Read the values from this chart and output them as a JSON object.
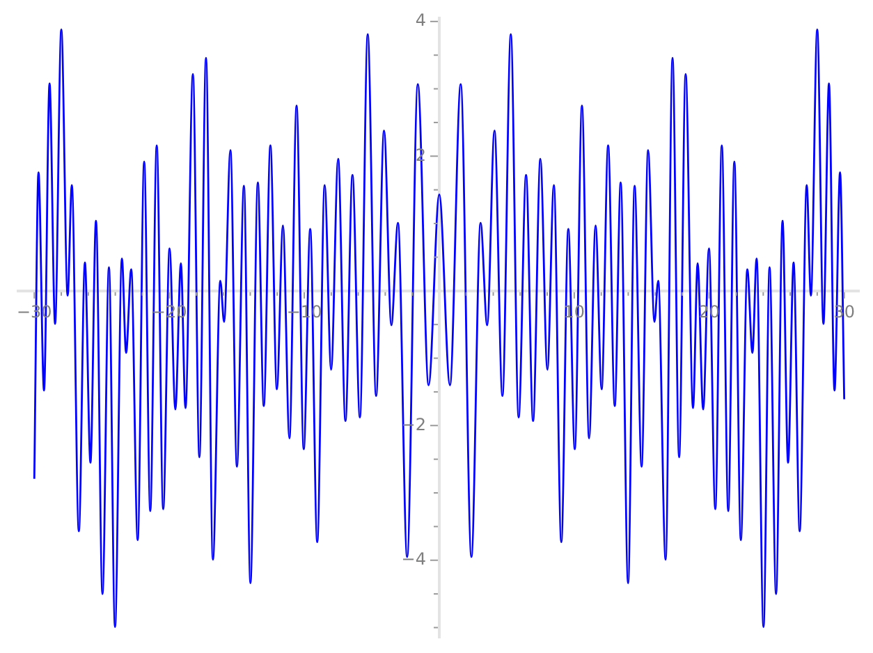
{
  "chart_data": {
    "type": "line",
    "color": "#0000ff",
    "marker": "none",
    "x": [
      -30,
      -29.69,
      -29.28,
      -28.87,
      -28.46,
      -28,
      -27.53,
      -27.22,
      -26.7,
      -26.25,
      -25.84,
      -25.43,
      -24.95,
      -24.47,
      -24.02,
      -23.51,
      -23.2,
      -22.82,
      -22.34,
      -21.86,
      -21.41,
      -20.93,
      -20.45,
      -19.98,
      -19.55,
      -19.14,
      -18.8,
      -18.25,
      -17.77,
      -17.28,
      -16.77,
      -16.22,
      -15.94,
      -15.47,
      -14.99,
      -14.47,
      -13.99,
      -13.44,
      -13,
      -12.51,
      -12.03,
      -11.58,
      -11.1,
      -10.57,
      -10.04,
      -9.56,
      -9.04,
      -8.49,
      -8.01,
      -7.49,
      -6.95,
      -6.43,
      -5.88,
      -5.3,
      -4.68,
      -4.09,
      -3.55,
      -3.06,
      -2.38,
      -1.59,
      -0.79,
      0,
      0.79,
      1.59,
      2.38,
      3.06,
      3.55,
      4.09,
      4.68,
      5.3,
      5.88,
      6.43,
      6.95,
      7.49,
      8.01,
      8.49,
      9.04,
      9.56,
      10.04,
      10.57,
      11.1,
      11.58,
      12.03,
      12.51,
      13,
      13.44,
      13.99,
      14.47,
      14.99,
      15.47,
      15.94,
      16.22,
      16.77,
      17.28,
      17.77,
      18.25,
      18.8,
      19.14,
      19.55,
      19.98,
      20.45,
      20.93,
      21.41,
      21.86,
      22.34,
      22.82,
      23.2,
      23.51,
      24.02,
      24.47,
      24.95,
      25.43,
      25.84,
      26.25,
      26.7,
      27.22,
      27.53,
      28,
      28.46,
      28.87,
      29.28,
      29.69,
      30
    ],
    "values": [
      -2.79,
      1.76,
      -1.48,
      3.08,
      -0.49,
      3.88,
      -0.07,
      1.57,
      -3.57,
      0.42,
      -2.55,
      1.04,
      -4.5,
      0.35,
      -4.99,
      0.48,
      -0.92,
      0.32,
      -3.7,
      1.92,
      -3.27,
      2.16,
      -3.24,
      0.63,
      -1.76,
      0.41,
      -1.74,
      3.22,
      -2.47,
      3.46,
      -3.99,
      0.15,
      -0.46,
      2.09,
      -2.61,
      1.56,
      -4.34,
      1.61,
      -1.71,
      2.16,
      -1.46,
      0.97,
      -2.19,
      2.75,
      -2.35,
      0.92,
      -3.73,
      1.57,
      -1.17,
      1.96,
      -1.93,
      1.72,
      -1.88,
      3.81,
      -1.56,
      2.38,
      -0.51,
      1.01,
      -3.95,
      3.07,
      -1.4,
      1.43,
      -1.4,
      3.07,
      -3.95,
      1.01,
      -0.51,
      2.38,
      -1.56,
      3.81,
      -1.88,
      1.72,
      -1.93,
      1.96,
      -1.17,
      1.57,
      -3.73,
      0.92,
      -2.35,
      2.75,
      -2.19,
      0.97,
      -1.46,
      2.16,
      -1.71,
      1.61,
      -4.34,
      1.56,
      -2.61,
      2.09,
      -0.46,
      0.15,
      -3.99,
      3.46,
      -2.47,
      3.22,
      -1.74,
      0.41,
      -1.76,
      0.63,
      -3.24,
      2.16,
      -3.27,
      1.92,
      -3.7,
      0.32,
      -0.92,
      0.48,
      -4.99,
      0.35,
      -4.5,
      1.04,
      -2.55,
      0.42,
      -3.57,
      1.57,
      -0.07,
      3.88,
      -0.49,
      3.08,
      -1.48,
      1.76,
      -1.61
    ],
    "xlim": [
      -31.2,
      31.1
    ],
    "ylim": [
      -5.15,
      4.05
    ],
    "xticks": [
      {
        "value": -30,
        "label": "−30"
      },
      {
        "value": -28,
        "label": null
      },
      {
        "value": -26,
        "label": null
      },
      {
        "value": -24,
        "label": null
      },
      {
        "value": -22,
        "label": null
      },
      {
        "value": -20,
        "label": "−20"
      },
      {
        "value": -18,
        "label": null
      },
      {
        "value": -16,
        "label": null
      },
      {
        "value": -14,
        "label": null
      },
      {
        "value": -12,
        "label": null
      },
      {
        "value": -10,
        "label": "−10"
      },
      {
        "value": -8,
        "label": null
      },
      {
        "value": -6,
        "label": null
      },
      {
        "value": -4,
        "label": null
      },
      {
        "value": -2,
        "label": null
      },
      {
        "value": 2,
        "label": null
      },
      {
        "value": 4,
        "label": null
      },
      {
        "value": 6,
        "label": null
      },
      {
        "value": 8,
        "label": null
      },
      10,
      {
        "value": 12,
        "label": null
      },
      {
        "value": 14,
        "label": null
      },
      {
        "value": 16,
        "label": null
      },
      {
        "value": 18,
        "label": null
      },
      20,
      {
        "value": 22,
        "label": null
      },
      {
        "value": 24,
        "label": null
      },
      {
        "value": 26,
        "label": null
      },
      {
        "value": 28,
        "label": null
      },
      30
    ],
    "yticks": [
      {
        "value": -5,
        "label": null
      },
      {
        "value": -4.5,
        "label": null
      },
      {
        "value": -4,
        "label": "−4"
      },
      {
        "value": -3.5,
        "label": null
      },
      {
        "value": -3,
        "label": null
      },
      {
        "value": -2.5,
        "label": null
      },
      {
        "value": -2,
        "label": "−2"
      },
      {
        "value": -1.5,
        "label": null
      },
      {
        "value": -1,
        "label": null
      },
      {
        "value": -0.5,
        "label": null
      },
      {
        "value": 0.5,
        "label": null
      },
      {
        "value": 1,
        "label": null
      },
      {
        "value": 1.5,
        "label": null
      },
      2,
      {
        "value": 2.5,
        "label": null
      },
      {
        "value": 3,
        "label": null
      },
      {
        "value": 3.5,
        "label": null
      },
      4
    ]
  }
}
